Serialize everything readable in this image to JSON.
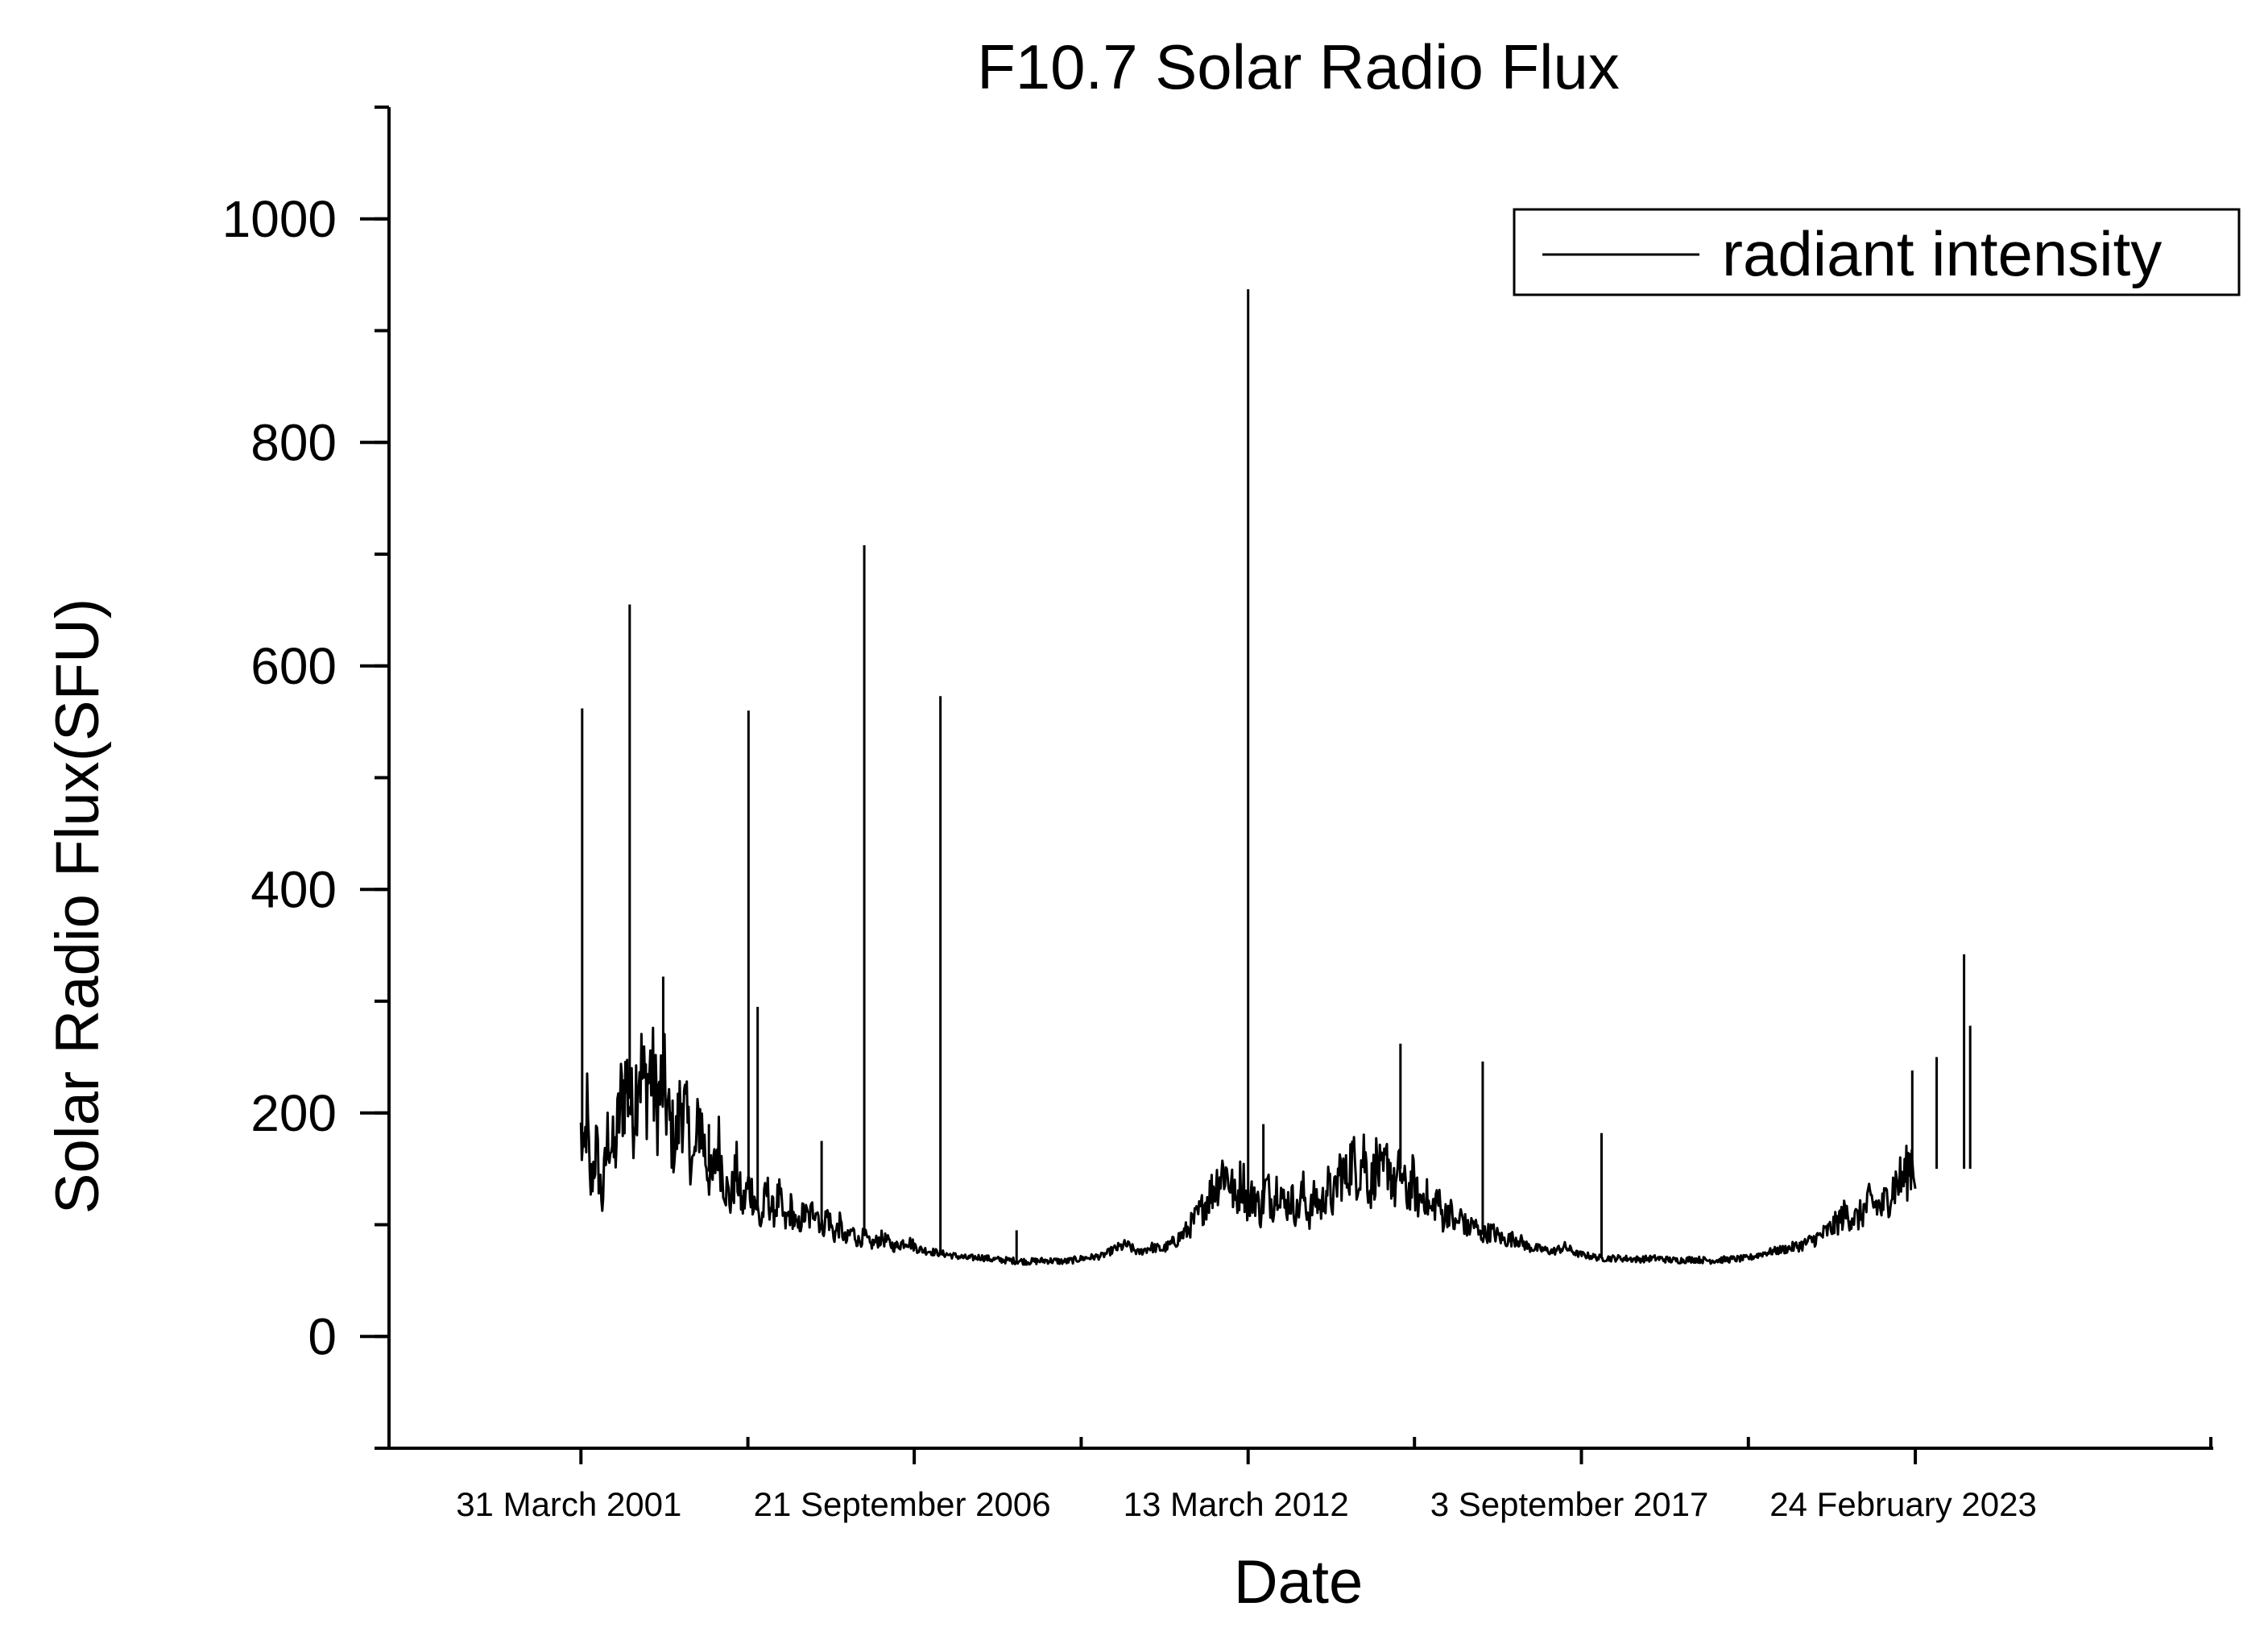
{
  "chart_data": {
    "type": "line",
    "title": "F10.7 Solar Radio Flux",
    "xlabel": "Date",
    "ylabel": "Solar Radio Flux(SFU)",
    "ylim": [
      -100,
      1100
    ],
    "xlim": [
      1998.1,
      2028.0
    ],
    "y_ticks": [
      0,
      200,
      400,
      600,
      800,
      1000
    ],
    "y_tick_labels": [
      "0",
      "200",
      "400",
      "600",
      "800",
      "1000"
    ],
    "y_minor_step": 100,
    "x_ticks": [
      {
        "value": 2001.25,
        "label": "31 March 2001"
      },
      {
        "value": 2006.72,
        "label": "21 September 2006"
      },
      {
        "value": 2012.2,
        "label": "13 March 2012"
      },
      {
        "value": 2017.67,
        "label": "3 September 2017"
      },
      {
        "value": 2023.15,
        "label": "24 February 2023"
      }
    ],
    "x_minor_ticks": [
      2003.99,
      2009.46,
      2014.93,
      2020.41
    ],
    "legend": {
      "label": "radiant intensity",
      "position": "top-right"
    },
    "grid": false,
    "series": [
      {
        "name": "radiant intensity",
        "color": "#000000",
        "points": [
          [
            2001.25,
            180
          ],
          [
            2001.3,
            150
          ],
          [
            2001.35,
            205
          ],
          [
            2001.4,
            130
          ],
          [
            2001.5,
            170
          ],
          [
            2001.6,
            120
          ],
          [
            2001.7,
            185
          ],
          [
            2001.8,
            160
          ],
          [
            2001.9,
            210
          ],
          [
            2002.0,
            230
          ],
          [
            2002.1,
            195
          ],
          [
            2002.2,
            250
          ],
          [
            2002.3,
            220
          ],
          [
            2002.4,
            240
          ],
          [
            2002.5,
            205
          ],
          [
            2002.6,
            230
          ],
          [
            2002.7,
            190
          ],
          [
            2002.8,
            170
          ],
          [
            2002.9,
            215
          ],
          [
            2003.0,
            185
          ],
          [
            2003.1,
            150
          ],
          [
            2003.2,
            200
          ],
          [
            2003.3,
            160
          ],
          [
            2003.4,
            135
          ],
          [
            2003.5,
            175
          ],
          [
            2003.6,
            140
          ],
          [
            2003.7,
            120
          ],
          [
            2003.8,
            150
          ],
          [
            2003.9,
            115
          ],
          [
            2004.0,
            135
          ],
          [
            2004.1,
            125
          ],
          [
            2004.2,
            100
          ],
          [
            2004.3,
            130
          ],
          [
            2004.4,
            110
          ],
          [
            2004.5,
            125
          ],
          [
            2004.6,
            100
          ],
          [
            2004.7,
            115
          ],
          [
            2004.8,
            95
          ],
          [
            2004.9,
            110
          ],
          [
            2005.0,
            105
          ],
          [
            2005.1,
            120
          ],
          [
            2005.2,
            95
          ],
          [
            2005.3,
            110
          ],
          [
            2005.4,
            90
          ],
          [
            2005.5,
            100
          ],
          [
            2005.6,
            85
          ],
          [
            2005.7,
            95
          ],
          [
            2005.8,
            85
          ],
          [
            2005.9,
            90
          ],
          [
            2006.0,
            82
          ],
          [
            2006.2,
            88
          ],
          [
            2006.4,
            80
          ],
          [
            2006.6,
            86
          ],
          [
            2006.8,
            78
          ],
          [
            2007.0,
            76
          ],
          [
            2007.2,
            74
          ],
          [
            2007.4,
            72
          ],
          [
            2007.6,
            70
          ],
          [
            2007.8,
            71
          ],
          [
            2008.0,
            69
          ],
          [
            2008.3,
            68
          ],
          [
            2008.6,
            67
          ],
          [
            2008.9,
            68
          ],
          [
            2009.2,
            67
          ],
          [
            2009.5,
            70
          ],
          [
            2009.8,
            72
          ],
          [
            2010.0,
            78
          ],
          [
            2010.2,
            82
          ],
          [
            2010.4,
            75
          ],
          [
            2010.6,
            80
          ],
          [
            2010.8,
            78
          ],
          [
            2011.0,
            85
          ],
          [
            2011.2,
            95
          ],
          [
            2011.4,
            110
          ],
          [
            2011.6,
            130
          ],
          [
            2011.8,
            150
          ],
          [
            2011.9,
            140
          ],
          [
            2012.0,
            120
          ],
          [
            2012.1,
            145
          ],
          [
            2012.2,
            115
          ],
          [
            2012.3,
            130
          ],
          [
            2012.4,
            110
          ],
          [
            2012.5,
            135
          ],
          [
            2012.6,
            118
          ],
          [
            2012.7,
            140
          ],
          [
            2012.8,
            115
          ],
          [
            2012.9,
            125
          ],
          [
            2013.0,
            110
          ],
          [
            2013.1,
            130
          ],
          [
            2013.2,
            108
          ],
          [
            2013.3,
            125
          ],
          [
            2013.4,
            115
          ],
          [
            2013.5,
            135
          ],
          [
            2013.6,
            120
          ],
          [
            2013.7,
            150
          ],
          [
            2013.8,
            140
          ],
          [
            2013.9,
            160
          ],
          [
            2014.0,
            145
          ],
          [
            2014.1,
            165
          ],
          [
            2014.2,
            130
          ],
          [
            2014.3,
            155
          ],
          [
            2014.4,
            140
          ],
          [
            2014.5,
            160
          ],
          [
            2014.6,
            130
          ],
          [
            2014.7,
            150
          ],
          [
            2014.8,
            125
          ],
          [
            2014.9,
            140
          ],
          [
            2015.0,
            120
          ],
          [
            2015.1,
            130
          ],
          [
            2015.2,
            110
          ],
          [
            2015.3,
            125
          ],
          [
            2015.4,
            105
          ],
          [
            2015.5,
            115
          ],
          [
            2015.6,
            98
          ],
          [
            2015.7,
            108
          ],
          [
            2015.8,
            95
          ],
          [
            2015.9,
            102
          ],
          [
            2016.0,
            90
          ],
          [
            2016.2,
            94
          ],
          [
            2016.4,
            86
          ],
          [
            2016.6,
            88
          ],
          [
            2016.8,
            80
          ],
          [
            2017.0,
            78
          ],
          [
            2017.2,
            76
          ],
          [
            2017.4,
            80
          ],
          [
            2017.6,
            74
          ],
          [
            2017.8,
            72
          ],
          [
            2018.0,
            70
          ],
          [
            2018.3,
            70
          ],
          [
            2018.6,
            69
          ],
          [
            2018.9,
            70
          ],
          [
            2019.2,
            68
          ],
          [
            2019.5,
            69
          ],
          [
            2019.8,
            68
          ],
          [
            2020.1,
            69
          ],
          [
            2020.4,
            70
          ],
          [
            2020.7,
            75
          ],
          [
            2021.0,
            78
          ],
          [
            2021.3,
            82
          ],
          [
            2021.6,
            90
          ],
          [
            2021.8,
            98
          ],
          [
            2022.0,
            110
          ],
          [
            2022.2,
            105
          ],
          [
            2022.4,
            120
          ],
          [
            2022.6,
            115
          ],
          [
            2022.8,
            135
          ],
          [
            2023.0,
            145
          ],
          [
            2023.1,
            160
          ],
          [
            2023.15,
            150
          ]
        ],
        "spikes": [
          [
            2001.27,
            562
          ],
          [
            2002.05,
            655
          ],
          [
            2002.6,
            322
          ],
          [
            2003.35,
            190
          ],
          [
            2004.0,
            560
          ],
          [
            2004.15,
            295
          ],
          [
            2005.2,
            175
          ],
          [
            2005.9,
            708
          ],
          [
            2007.15,
            573
          ],
          [
            2008.4,
            95
          ],
          [
            2012.2,
            937
          ],
          [
            2012.45,
            190
          ],
          [
            2014.7,
            262
          ],
          [
            2016.05,
            246
          ],
          [
            2018.0,
            182
          ],
          [
            2021.9,
            112
          ],
          [
            2023.1,
            238
          ],
          [
            2023.5,
            250
          ],
          [
            2023.95,
            342
          ],
          [
            2024.05,
            278
          ]
        ]
      }
    ]
  }
}
